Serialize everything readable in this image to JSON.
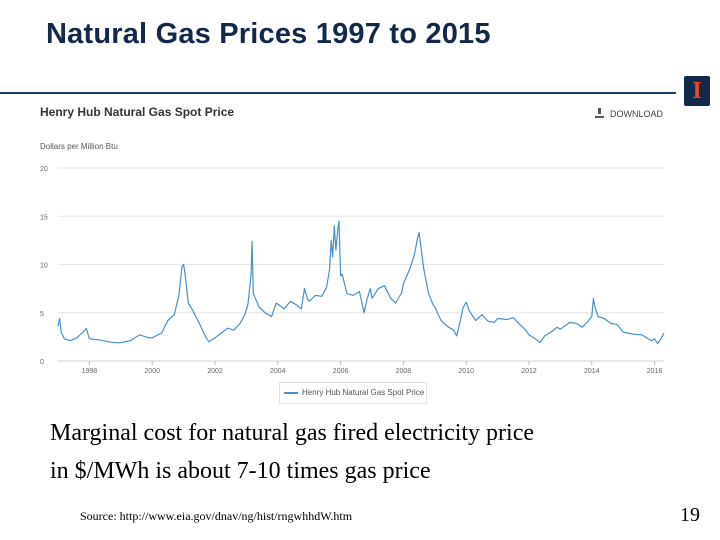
{
  "slide": {
    "title": "Natural Gas Prices 1997 to 2015",
    "body_lines": [
      "Marginal cost for natural gas fired electricity price",
      "in $/MWh is about 7-10 times gas price"
    ],
    "source": "Source: http://www.eia.gov/dnav/ng/hist/rngwhhdW.htm",
    "page_number": "19",
    "logo_letter": "I"
  },
  "chart_header": {
    "download_label": "DOWNLOAD"
  },
  "colors": {
    "title": "#13294b",
    "logo_bg": "#13294b",
    "logo_letter": "#e84a27",
    "series": "#4a90c8",
    "grid": "#e6e6e6"
  },
  "chart_data": {
    "type": "line",
    "title": "Henry Hub Natural Gas Spot Price",
    "ylabel": "Dollars per Million Btu",
    "xlabel": "",
    "ylim": [
      0,
      20
    ],
    "xlim": [
      1997.0,
      2016.3
    ],
    "y_ticks": [
      "0",
      "5",
      "10",
      "15",
      "20"
    ],
    "x_ticks": [
      "1998",
      "2000",
      "2002",
      "2004",
      "2006",
      "2008",
      "2010",
      "2012",
      "2014",
      "2016"
    ],
    "grid": true,
    "legend_position": "bottom-center",
    "series": [
      {
        "name": "Henry Hub Natural Gas Spot Price",
        "points": [
          [
            1997.0,
            3.6
          ],
          [
            1997.05,
            4.4
          ],
          [
            1997.1,
            3.0
          ],
          [
            1997.2,
            2.3
          ],
          [
            1997.4,
            2.1
          ],
          [
            1997.6,
            2.4
          ],
          [
            1997.8,
            3.0
          ],
          [
            1997.9,
            3.4
          ],
          [
            1998.0,
            2.3
          ],
          [
            1998.3,
            2.2
          ],
          [
            1998.6,
            2.0
          ],
          [
            1998.8,
            1.9
          ],
          [
            1999.0,
            1.9
          ],
          [
            1999.3,
            2.1
          ],
          [
            1999.6,
            2.7
          ],
          [
            1999.9,
            2.4
          ],
          [
            2000.0,
            2.4
          ],
          [
            2000.3,
            2.9
          ],
          [
            2000.5,
            4.2
          ],
          [
            2000.7,
            4.8
          ],
          [
            2000.85,
            6.8
          ],
          [
            2000.95,
            9.8
          ],
          [
            2001.0,
            10.0
          ],
          [
            2001.05,
            8.9
          ],
          [
            2001.15,
            6.0
          ],
          [
            2001.3,
            5.2
          ],
          [
            2001.5,
            3.9
          ],
          [
            2001.7,
            2.5
          ],
          [
            2001.8,
            2.0
          ],
          [
            2002.0,
            2.4
          ],
          [
            2002.2,
            2.9
          ],
          [
            2002.4,
            3.4
          ],
          [
            2002.6,
            3.2
          ],
          [
            2002.8,
            3.9
          ],
          [
            2002.95,
            4.8
          ],
          [
            2003.05,
            5.9
          ],
          [
            2003.15,
            9.0
          ],
          [
            2003.18,
            12.4
          ],
          [
            2003.22,
            7.0
          ],
          [
            2003.4,
            5.6
          ],
          [
            2003.6,
            5.0
          ],
          [
            2003.8,
            4.6
          ],
          [
            2003.95,
            6.0
          ],
          [
            2004.0,
            5.9
          ],
          [
            2004.2,
            5.4
          ],
          [
            2004.4,
            6.2
          ],
          [
            2004.6,
            5.8
          ],
          [
            2004.75,
            5.4
          ],
          [
            2004.85,
            7.5
          ],
          [
            2004.95,
            6.4
          ],
          [
            2005.0,
            6.2
          ],
          [
            2005.2,
            6.8
          ],
          [
            2005.4,
            6.7
          ],
          [
            2005.55,
            7.6
          ],
          [
            2005.65,
            9.5
          ],
          [
            2005.7,
            12.5
          ],
          [
            2005.75,
            10.8
          ],
          [
            2005.8,
            14.0
          ],
          [
            2005.85,
            11.5
          ],
          [
            2005.9,
            13.3
          ],
          [
            2005.95,
            14.5
          ],
          [
            2006.0,
            8.8
          ],
          [
            2006.05,
            9.0
          ],
          [
            2006.2,
            7.0
          ],
          [
            2006.4,
            6.8
          ],
          [
            2006.6,
            7.2
          ],
          [
            2006.75,
            5.0
          ],
          [
            2006.85,
            6.5
          ],
          [
            2006.95,
            7.5
          ],
          [
            2007.0,
            6.5
          ],
          [
            2007.2,
            7.5
          ],
          [
            2007.4,
            7.8
          ],
          [
            2007.6,
            6.5
          ],
          [
            2007.75,
            6.0
          ],
          [
            2007.95,
            7.1
          ],
          [
            2008.0,
            8.0
          ],
          [
            2008.2,
            9.5
          ],
          [
            2008.35,
            11.0
          ],
          [
            2008.45,
            12.7
          ],
          [
            2008.5,
            13.3
          ],
          [
            2008.55,
            12.0
          ],
          [
            2008.65,
            9.5
          ],
          [
            2008.8,
            7.0
          ],
          [
            2008.95,
            5.8
          ],
          [
            2009.0,
            5.6
          ],
          [
            2009.2,
            4.2
          ],
          [
            2009.4,
            3.6
          ],
          [
            2009.6,
            3.2
          ],
          [
            2009.7,
            2.6
          ],
          [
            2009.8,
            4.0
          ],
          [
            2009.9,
            5.5
          ],
          [
            2010.0,
            6.1
          ],
          [
            2010.1,
            5.2
          ],
          [
            2010.3,
            4.2
          ],
          [
            2010.5,
            4.8
          ],
          [
            2010.7,
            4.1
          ],
          [
            2010.9,
            4.0
          ],
          [
            2011.0,
            4.4
          ],
          [
            2011.3,
            4.3
          ],
          [
            2011.5,
            4.5
          ],
          [
            2011.7,
            3.8
          ],
          [
            2011.9,
            3.2
          ],
          [
            2012.0,
            2.7
          ],
          [
            2012.2,
            2.3
          ],
          [
            2012.35,
            1.9
          ],
          [
            2012.5,
            2.6
          ],
          [
            2012.7,
            3.0
          ],
          [
            2012.9,
            3.5
          ],
          [
            2013.0,
            3.3
          ],
          [
            2013.3,
            4.0
          ],
          [
            2013.5,
            3.9
          ],
          [
            2013.7,
            3.5
          ],
          [
            2013.9,
            4.2
          ],
          [
            2014.0,
            4.6
          ],
          [
            2014.05,
            6.5
          ],
          [
            2014.1,
            5.6
          ],
          [
            2014.2,
            4.6
          ],
          [
            2014.4,
            4.4
          ],
          [
            2014.6,
            3.9
          ],
          [
            2014.8,
            3.8
          ],
          [
            2015.0,
            3.0
          ],
          [
            2015.3,
            2.8
          ],
          [
            2015.6,
            2.7
          ],
          [
            2015.9,
            2.1
          ],
          [
            2016.0,
            2.3
          ],
          [
            2016.1,
            1.8
          ],
          [
            2016.2,
            2.3
          ],
          [
            2016.3,
            2.9
          ]
        ]
      }
    ]
  }
}
